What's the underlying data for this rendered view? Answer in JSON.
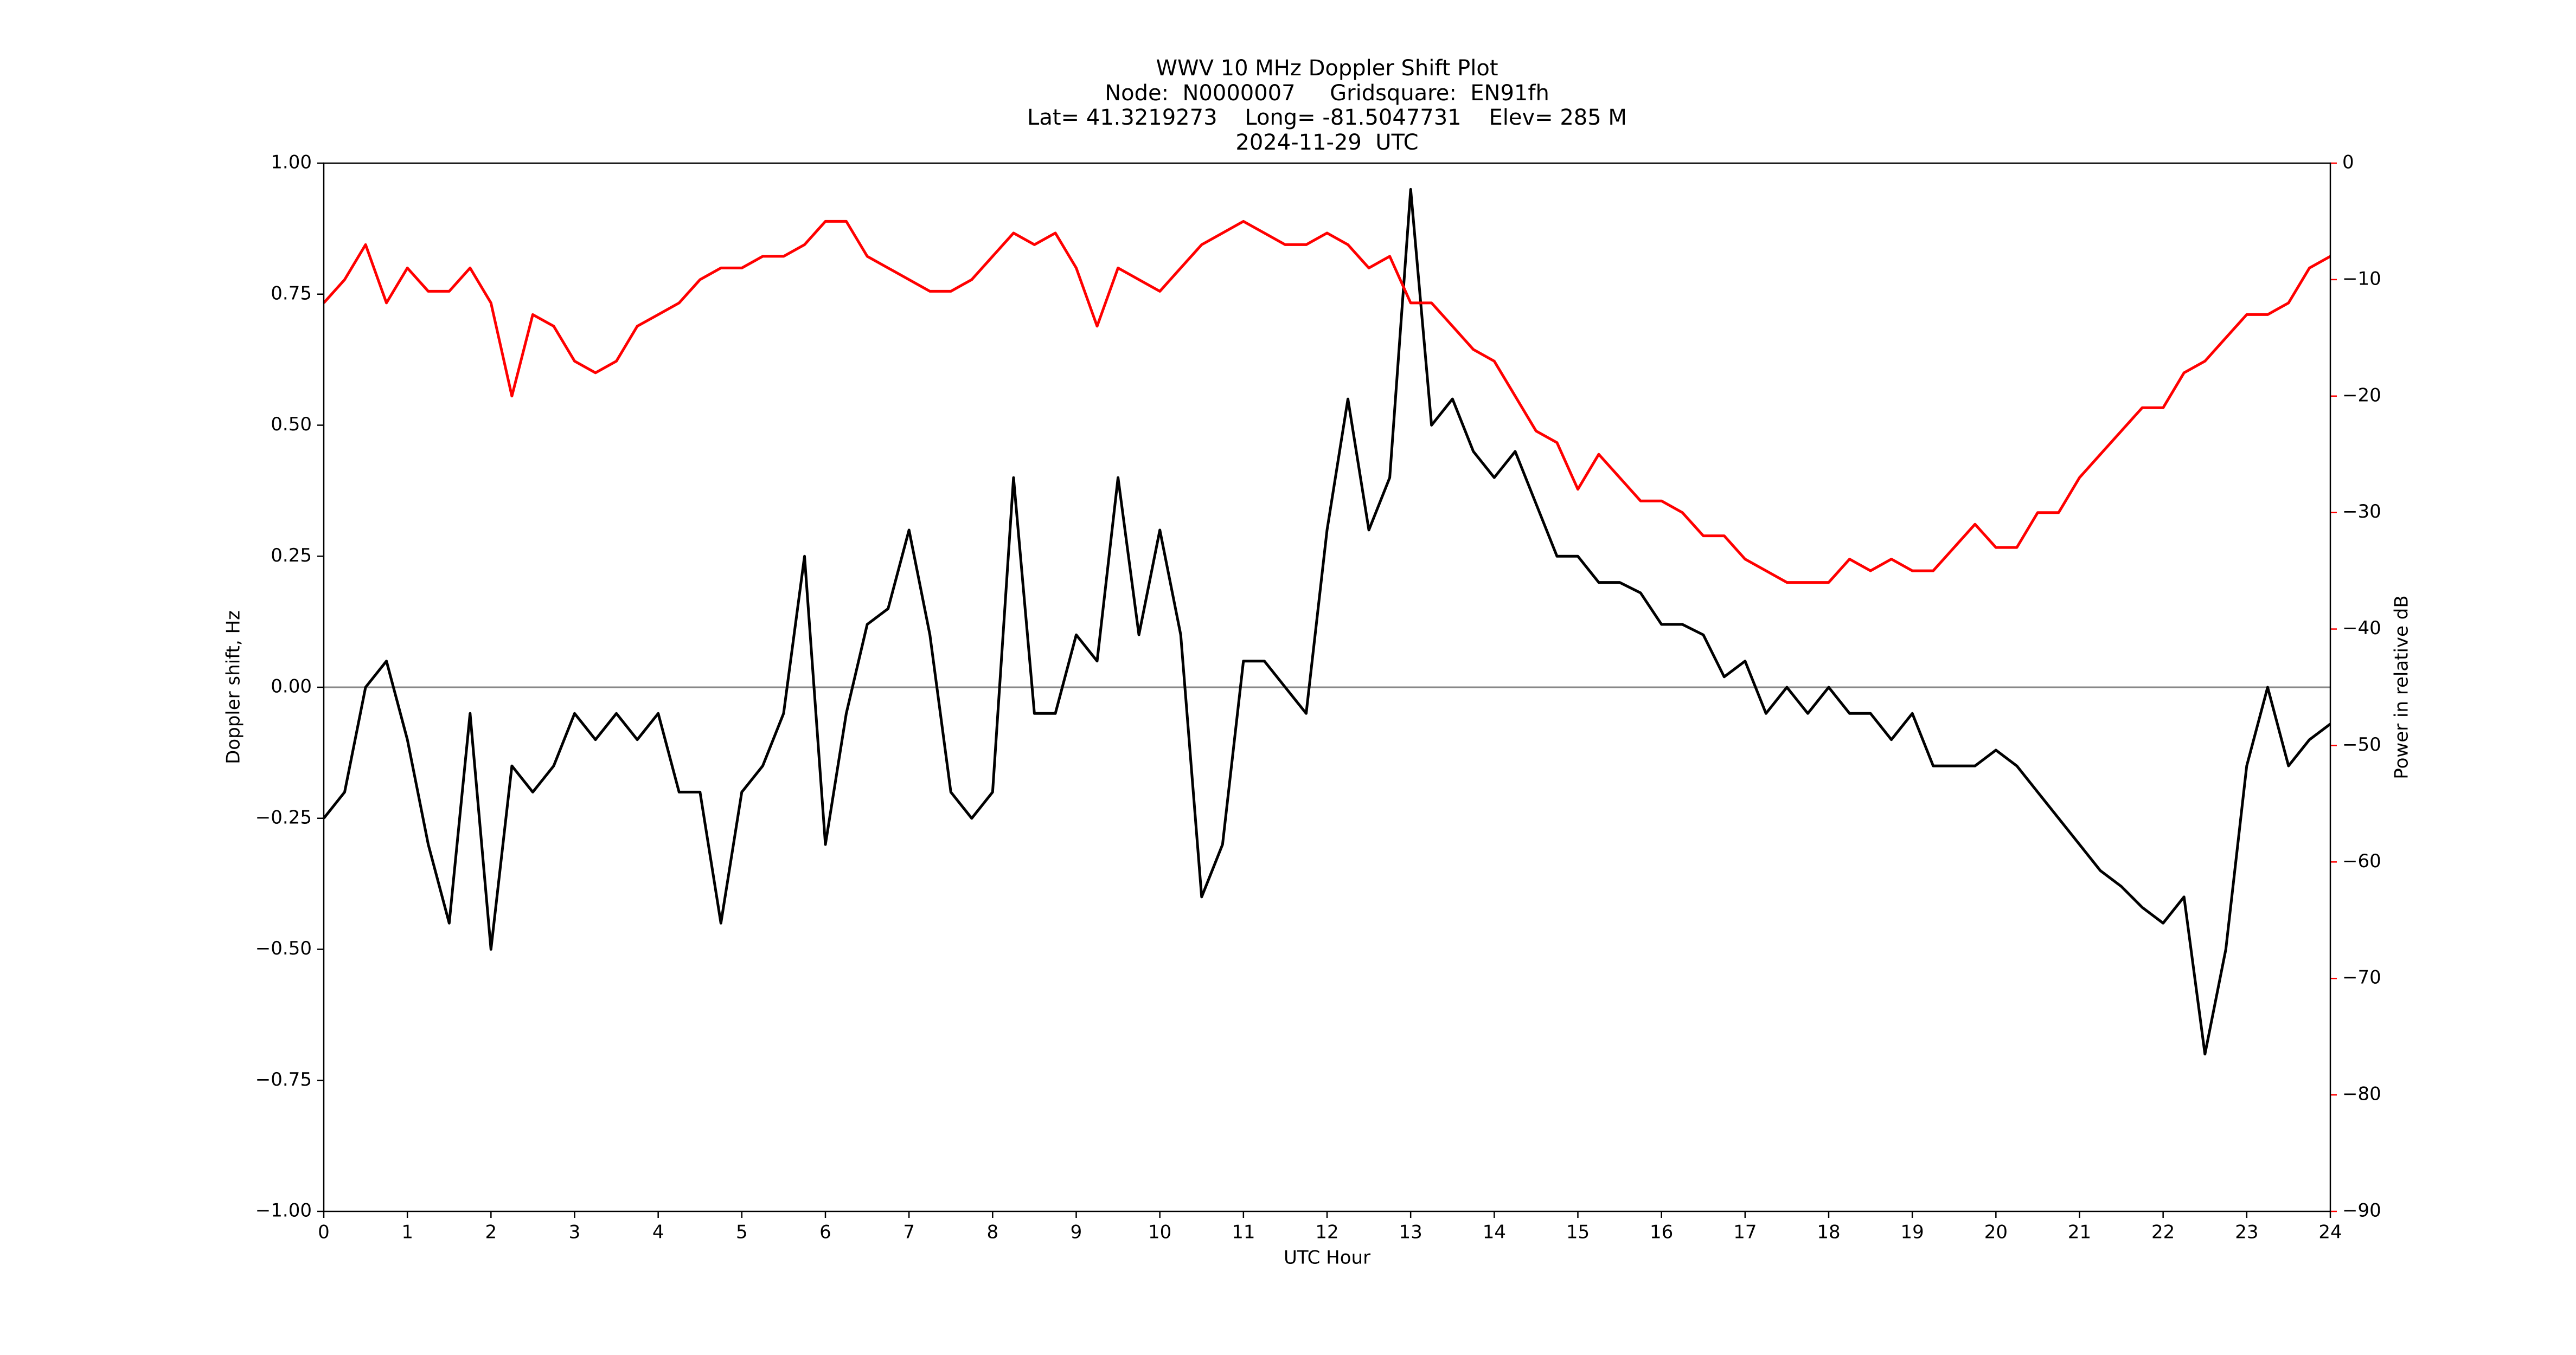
{
  "chart_data": {
    "type": "line",
    "title": [
      "WWV 10 MHz Doppler Shift Plot",
      "Node:  N0000007     Gridsquare:  EN91fh",
      "Lat= 41.3219273    Long= -81.5047731    Elev= 285 M",
      "2024-11-29  UTC"
    ],
    "xlabel": "UTC Hour",
    "ylabel": "Doppler shift, Hz",
    "y2label": "Power in relative dB",
    "x": [
      0,
      0.25,
      0.5,
      0.75,
      1,
      1.25,
      1.5,
      1.75,
      2,
      2.25,
      2.5,
      2.75,
      3,
      3.25,
      3.5,
      3.75,
      4,
      4.25,
      4.5,
      4.75,
      5,
      5.25,
      5.5,
      5.75,
      6,
      6.25,
      6.5,
      6.75,
      7,
      7.25,
      7.5,
      7.75,
      8,
      8.25,
      8.5,
      8.75,
      9,
      9.25,
      9.5,
      9.75,
      10,
      10.25,
      10.5,
      10.75,
      11,
      11.25,
      11.5,
      11.75,
      12,
      12.25,
      12.5,
      12.75,
      13,
      13.25,
      13.5,
      13.75,
      14,
      14.25,
      14.5,
      14.75,
      15,
      15.25,
      15.5,
      15.75,
      16,
      16.25,
      16.5,
      16.75,
      17,
      17.25,
      17.5,
      17.75,
      18,
      18.25,
      18.5,
      18.75,
      19,
      19.25,
      19.5,
      19.75,
      20,
      20.25,
      20.5,
      20.75,
      21,
      21.25,
      21.5,
      21.75,
      22,
      22.25,
      22.5,
      22.75,
      23,
      23.25,
      23.5,
      23.75,
      24
    ],
    "series": [
      {
        "color": "#000000",
        "values": [
          -0.25,
          -0.2,
          0.0,
          0.05,
          -0.1,
          -0.3,
          -0.45,
          -0.05,
          -0.5,
          -0.15,
          -0.2,
          -0.15,
          -0.05,
          -0.1,
          -0.05,
          -0.1,
          -0.05,
          -0.2,
          -0.2,
          -0.45,
          -0.2,
          -0.15,
          -0.05,
          0.25,
          -0.3,
          -0.05,
          0.12,
          0.15,
          0.3,
          0.1,
          -0.2,
          -0.25,
          -0.2,
          0.4,
          -0.05,
          -0.05,
          0.1,
          0.05,
          0.4,
          0.1,
          0.3,
          0.1,
          -0.4,
          -0.3,
          0.05,
          0.05,
          0.0,
          -0.05,
          0.3,
          0.55,
          0.3,
          0.4,
          0.95,
          0.5,
          0.55,
          0.45,
          0.4,
          0.45,
          0.35,
          0.25,
          0.25,
          0.2,
          0.2,
          0.18,
          0.12,
          0.12,
          0.1,
          0.02,
          0.05,
          -0.05,
          0.0,
          -0.05,
          0.0,
          -0.05,
          -0.05,
          -0.1,
          -0.05,
          -0.15,
          -0.15,
          -0.15,
          -0.12,
          -0.15,
          -0.2,
          -0.25,
          -0.3,
          -0.35,
          -0.38,
          -0.42,
          -0.45,
          -0.4,
          -0.7,
          -0.5,
          -0.15,
          0.0,
          -0.15,
          -0.1,
          -0.07
        ]
      },
      {
        "color": "#ff0000",
        "axis": "y2",
        "values": [
          -12,
          -10,
          -7,
          -12,
          -9,
          -11,
          -11,
          -9,
          -12,
          -20,
          -13,
          -14,
          -17,
          -18,
          -17,
          -14,
          -13,
          -12,
          -10,
          -9,
          -9,
          -8,
          -8,
          -7,
          -5,
          -5,
          -8,
          -9,
          -10,
          -11,
          -11,
          -10,
          -8,
          -6,
          -7,
          -6,
          -9,
          -14,
          -9,
          -10,
          -11,
          -9,
          -7,
          -6,
          -5,
          -6,
          -7,
          -7,
          -6,
          -7,
          -9,
          -8,
          -12,
          -12,
          -14,
          -16,
          -17,
          -20,
          -23,
          -24,
          -28,
          -25,
          -27,
          -29,
          -29,
          -30,
          -32,
          -32,
          -34,
          -35,
          -36,
          -36,
          -36,
          -34,
          -35,
          -34,
          -35,
          -35,
          -33,
          -31,
          -33,
          -33,
          -30,
          -30,
          -27,
          -25,
          -23,
          -21,
          -21,
          -18,
          -17,
          -15,
          -13,
          -13,
          -12,
          -9,
          -8
        ]
      }
    ],
    "hline": 0,
    "hline_color": "#888888",
    "xlim": [
      0,
      24
    ],
    "xticks": [
      0,
      1,
      2,
      3,
      4,
      5,
      6,
      7,
      8,
      9,
      10,
      11,
      12,
      13,
      14,
      15,
      16,
      17,
      18,
      19,
      20,
      21,
      22,
      23,
      24
    ],
    "ylim": [
      -1,
      1
    ],
    "yticks": [
      {
        "value": -1,
        "label": "−1.00"
      },
      {
        "value": -0.75,
        "label": "−0.75"
      },
      {
        "value": -0.5,
        "label": "−0.50"
      },
      {
        "value": -0.25,
        "label": "−0.25"
      },
      {
        "value": 0,
        "label": "0.00"
      },
      {
        "value": 0.25,
        "label": "0.25"
      },
      {
        "value": 0.5,
        "label": "0.50"
      },
      {
        "value": 0.75,
        "label": "0.75"
      },
      {
        "value": 1,
        "label": "1.00"
      }
    ],
    "y2lim": [
      -90,
      0
    ],
    "y2ticks": [
      0,
      {
        "value": -10,
        "label": "−10"
      },
      {
        "value": -20,
        "label": "−20"
      },
      {
        "value": -30,
        "label": "−30"
      },
      {
        "value": -40,
        "label": "−40"
      },
      {
        "value": -50,
        "label": "−50"
      },
      {
        "value": -60,
        "label": "−60"
      },
      {
        "value": -70,
        "label": "−70"
      },
      {
        "value": -80,
        "label": "−80"
      },
      {
        "value": -90,
        "label": "−90"
      }
    ],
    "y2color": "#ff0000"
  }
}
